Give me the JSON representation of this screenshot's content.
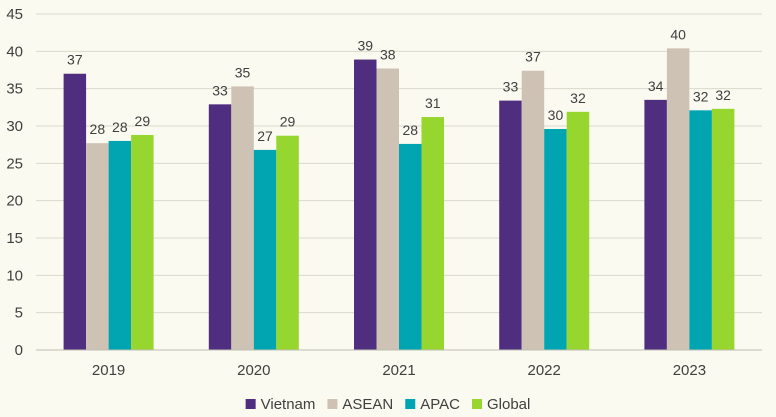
{
  "chart_data": {
    "type": "bar",
    "title": "",
    "xlabel": "",
    "ylabel": "",
    "categories": [
      "2019",
      "2020",
      "2021",
      "2022",
      "2023"
    ],
    "series": [
      {
        "name": "Vietnam",
        "color": "#4f2d7f",
        "values": [
          37,
          33,
          39,
          33,
          34
        ],
        "plot_values": [
          37.0,
          32.9,
          38.9,
          33.4,
          33.5
        ]
      },
      {
        "name": "ASEAN",
        "color": "#cdc2b3",
        "values": [
          28,
          35,
          38,
          37,
          40
        ],
        "plot_values": [
          27.7,
          35.3,
          37.7,
          37.4,
          40.4
        ]
      },
      {
        "name": "APAC",
        "color": "#00a5b1",
        "values": [
          28,
          27,
          28,
          30,
          32
        ],
        "plot_values": [
          28.0,
          26.8,
          27.6,
          29.6,
          32.1
        ]
      },
      {
        "name": "Global",
        "color": "#97d62e",
        "values": [
          29,
          29,
          31,
          32,
          32
        ],
        "plot_values": [
          28.8,
          28.7,
          31.2,
          31.9,
          32.3
        ]
      }
    ],
    "ylim": [
      0,
      45
    ],
    "y_ticks": [
      0,
      5,
      10,
      15,
      20,
      25,
      30,
      35,
      40,
      45
    ],
    "grid": true,
    "legend_position": "bottom"
  }
}
